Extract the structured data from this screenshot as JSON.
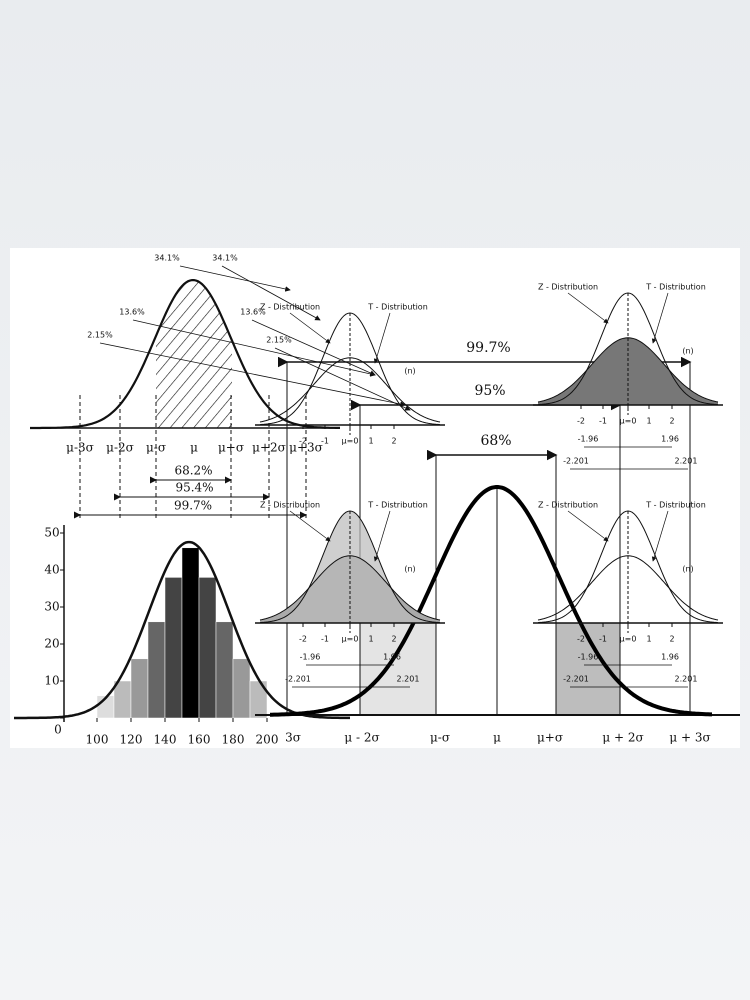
{
  "normal_panel": {
    "tail_labels": [
      "2.15%",
      "13.6%",
      "34.1%",
      "34.1%",
      "13.6%",
      "2.15%"
    ],
    "axis_labels": [
      "μ-3σ",
      "μ-2σ",
      "μ-σ",
      "μ",
      "μ+σ",
      "μ+2σ",
      "μ+3σ"
    ],
    "ranges": [
      "68.2%",
      "95.4%",
      "99.7%"
    ]
  },
  "histogram": {
    "bins": [
      100,
      110,
      120,
      130,
      140,
      150,
      160,
      170,
      180,
      190,
      200
    ],
    "values": [
      6,
      10,
      16,
      26,
      38,
      46,
      38,
      26,
      16,
      10
    ],
    "ylim": [
      0,
      50
    ],
    "yticks": [
      0,
      10,
      20,
      30,
      40,
      50
    ],
    "xticks": [
      100,
      120,
      140,
      160,
      180,
      200
    ]
  },
  "mini_plots": [
    {
      "z": "Z - Distribution",
      "t": "T - Distribution",
      "n": "(n)",
      "ticks": [
        "-2",
        "-1",
        "μ=0",
        "1",
        "2"
      ]
    },
    {
      "z": "Z - Distribution",
      "t": "T - Distribution",
      "n": "(n)",
      "ticks": [
        "-2",
        "-1",
        "μ=0",
        "1",
        "2"
      ],
      "z_crit": [
        "-1.96",
        "1.96"
      ],
      "t_crit": [
        "-2.201",
        "2.201"
      ]
    },
    {
      "z": "Z - Distribution",
      "t": "T - Distribution",
      "n": "(n)",
      "ticks": [
        "-2",
        "-1",
        "μ=0",
        "1",
        "2"
      ],
      "z_crit": [
        "-1.96",
        "1.96"
      ],
      "t_crit": [
        "-2.201",
        "2.201"
      ]
    },
    {
      "z": "Z - Distribution",
      "t": "T - Distribution",
      "n": "(n)",
      "ticks": [
        "-2",
        "-1",
        "μ=0",
        "1",
        "2"
      ],
      "z_crit": [
        "-1.96",
        "1.96"
      ],
      "t_crit": [
        "-2.201",
        "2.201"
      ]
    }
  ],
  "main_panel": {
    "axis_labels": [
      "3σ",
      "μ - 2σ",
      "μ-σ",
      "μ",
      "μ+σ",
      "μ + 2σ",
      "μ + 3σ"
    ],
    "ranges": [
      "68%",
      "95%",
      "99.7%"
    ]
  }
}
